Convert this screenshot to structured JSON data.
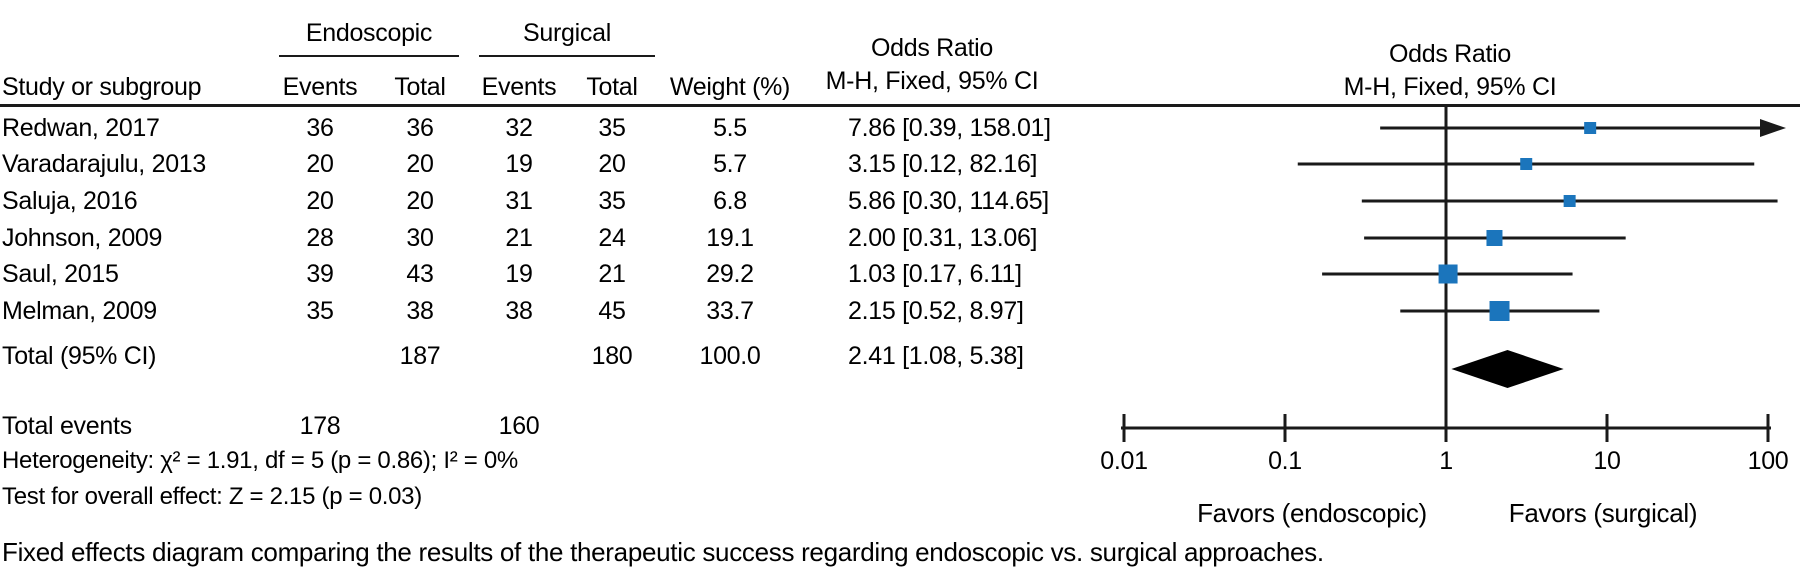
{
  "table": {
    "header": {
      "study": "Study or subgroup",
      "group_endoscopic": "Endoscopic",
      "group_surgical": "Surgical",
      "events": "Events",
      "total": "Total",
      "weight": "Weight (%)",
      "or_line1": "Odds Ratio",
      "or_line2": "M-H, Fixed, 95% CI"
    },
    "rows": [
      {
        "study": "Redwan, 2017",
        "e_events": "36",
        "e_total": "36",
        "s_events": "32",
        "s_total": "35",
        "weight": "5.5",
        "or_ci": "7.86 [0.39, 158.01]"
      },
      {
        "study": "Varadarajulu, 2013",
        "e_events": "20",
        "e_total": "20",
        "s_events": "19",
        "s_total": "20",
        "weight": "5.7",
        "or_ci": "3.15 [0.12, 82.16]"
      },
      {
        "study": "Saluja, 2016",
        "e_events": "20",
        "e_total": "20",
        "s_events": "31",
        "s_total": "35",
        "weight": "6.8",
        "or_ci": "5.86 [0.30, 114.65]"
      },
      {
        "study": "Johnson, 2009",
        "e_events": "28",
        "e_total": "30",
        "s_events": "21",
        "s_total": "24",
        "weight": "19.1",
        "or_ci": "2.00 [0.31, 13.06]"
      },
      {
        "study": "Saul, 2015",
        "e_events": "39",
        "e_total": "43",
        "s_events": "19",
        "s_total": "21",
        "weight": "29.2",
        "or_ci": "1.03 [0.17, 6.11]"
      },
      {
        "study": "Melman, 2009",
        "e_events": "35",
        "e_total": "38",
        "s_events": "38",
        "s_total": "45",
        "weight": "33.7",
        "or_ci": "2.15 [0.52, 8.97]"
      }
    ],
    "total_row": {
      "label": "Total (95% CI)",
      "e_total": "187",
      "s_total": "180",
      "weight": "100.0",
      "or_ci": "2.41 [1.08, 5.38]"
    },
    "total_events_row": {
      "label": "Total events",
      "e_events": "178",
      "s_events": "160"
    },
    "stats": {
      "heterogeneity": "Heterogeneity: χ² = 1.91, df = 5 (p = 0.86); I² = 0%",
      "overall_effect": "Test for overall effect: Z = 2.15 (p = 0.03)"
    }
  },
  "plot": {
    "header_line1": "Odds Ratio",
    "header_line2": "M-H, Fixed, 95% CI",
    "favors_left": "Favors (endoscopic)",
    "favors_right": "Favors (surgical)",
    "marker_color": "#1B75BC",
    "line_color": "#1a1a1a",
    "diamond_color": "#000000"
  },
  "caption": "Fixed effects diagram comparing the results of the therapeutic success regarding endoscopic vs. surgical approaches.",
  "chart_data": {
    "type": "forest",
    "x_scale": "log10",
    "effect_measure": "Odds Ratio (M-H, Fixed, 95% CI)",
    "axis": {
      "ticks": [
        0.01,
        0.1,
        1,
        10,
        100
      ],
      "min": 0.01,
      "max": 100,
      "null_line": 1
    },
    "studies": [
      {
        "name": "Redwan, 2017",
        "or": 7.86,
        "ci_low": 0.39,
        "ci_high": 158.01,
        "weight": 5.5,
        "arrow_right": true
      },
      {
        "name": "Varadarajulu, 2013",
        "or": 3.15,
        "ci_low": 0.12,
        "ci_high": 82.16,
        "weight": 5.7,
        "arrow_right": false
      },
      {
        "name": "Saluja, 2016",
        "or": 5.86,
        "ci_low": 0.3,
        "ci_high": 114.65,
        "weight": 6.8,
        "arrow_right": false
      },
      {
        "name": "Johnson, 2009",
        "or": 2.0,
        "ci_low": 0.31,
        "ci_high": 13.06,
        "weight": 19.1,
        "arrow_right": false
      },
      {
        "name": "Saul, 2015",
        "or": 1.03,
        "ci_low": 0.17,
        "ci_high": 6.11,
        "weight": 29.2,
        "arrow_right": false
      },
      {
        "name": "Melman, 2009",
        "or": 2.15,
        "ci_low": 0.52,
        "ci_high": 8.97,
        "weight": 33.7,
        "arrow_right": false
      }
    ],
    "total": {
      "label": "Total (95% CI)",
      "or": 2.41,
      "ci_low": 1.08,
      "ci_high": 5.38,
      "weight": 100.0
    }
  }
}
